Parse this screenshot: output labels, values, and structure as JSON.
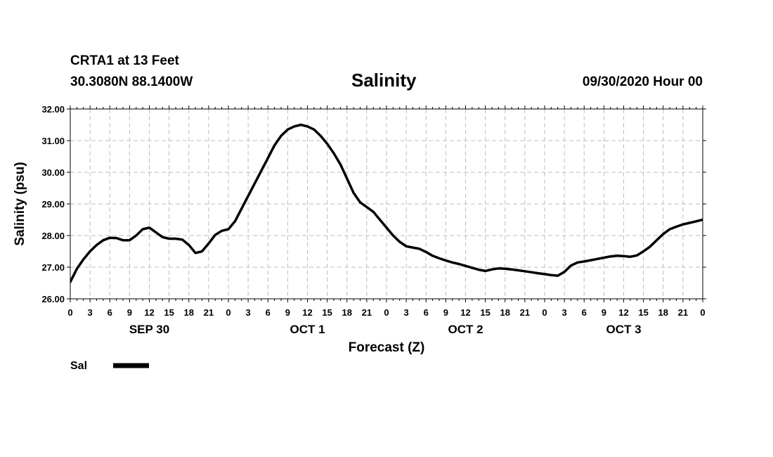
{
  "header": {
    "station": "CRTA1 at 13 Feet",
    "coords": "30.3080N 88.1400W",
    "run_time": "09/30/2020 Hour 00"
  },
  "chart_data": {
    "type": "line",
    "title": "Salinity",
    "xlabel": "Forecast (Z)",
    "ylabel": "Salinity (psu)",
    "ylim": [
      26,
      32
    ],
    "xlim": [
      0,
      96
    ],
    "grid": true,
    "x_unit": "forecast hour",
    "y_ticks": [
      "26.00",
      "27.00",
      "28.00",
      "29.00",
      "30.00",
      "31.00",
      "32.00"
    ],
    "x_tick_labels": [
      "0",
      "3",
      "6",
      "9",
      "12",
      "15",
      "18",
      "21",
      "0",
      "3",
      "6",
      "9",
      "12",
      "15",
      "18",
      "21",
      "0",
      "3",
      "6",
      "9",
      "12",
      "15",
      "18",
      "21",
      "0",
      "3",
      "6",
      "9",
      "12",
      "15",
      "18",
      "21",
      "0"
    ],
    "day_labels": [
      {
        "label": "SEP 30",
        "hour": 12
      },
      {
        "label": "OCT 1",
        "hour": 36
      },
      {
        "label": "OCT 2",
        "hour": 60
      },
      {
        "label": "OCT 3",
        "hour": 84
      }
    ],
    "series": [
      {
        "name": "Sal",
        "color": "#000000",
        "x": [
          0,
          1,
          2,
          3,
          4,
          5,
          6,
          7,
          8,
          9,
          10,
          11,
          12,
          13,
          14,
          15,
          16,
          17,
          18,
          19,
          20,
          21,
          22,
          23,
          24,
          25,
          26,
          27,
          28,
          29,
          30,
          31,
          32,
          33,
          34,
          35,
          36,
          37,
          38,
          39,
          40,
          41,
          42,
          43,
          44,
          45,
          46,
          47,
          48,
          49,
          50,
          51,
          52,
          53,
          54,
          55,
          56,
          57,
          58,
          59,
          60,
          61,
          62,
          63,
          64,
          65,
          66,
          67,
          68,
          69,
          70,
          71,
          72,
          73,
          74,
          75,
          76,
          77,
          78,
          79,
          80,
          81,
          82,
          83,
          84,
          85,
          86,
          87,
          88,
          89,
          90,
          91,
          92,
          93,
          94,
          95,
          96
        ],
        "y": [
          26.53,
          26.95,
          27.25,
          27.5,
          27.7,
          27.85,
          27.93,
          27.92,
          27.85,
          27.85,
          28.0,
          28.2,
          28.25,
          28.1,
          27.95,
          27.9,
          27.9,
          27.87,
          27.7,
          27.45,
          27.5,
          27.75,
          28.02,
          28.15,
          28.2,
          28.45,
          28.85,
          29.25,
          29.65,
          30.05,
          30.45,
          30.85,
          31.15,
          31.35,
          31.45,
          31.5,
          31.45,
          31.35,
          31.15,
          30.9,
          30.6,
          30.25,
          29.8,
          29.35,
          29.05,
          28.9,
          28.75,
          28.5,
          28.25,
          28.0,
          27.8,
          27.66,
          27.62,
          27.58,
          27.48,
          27.36,
          27.28,
          27.21,
          27.15,
          27.1,
          27.04,
          26.98,
          26.92,
          26.88,
          26.93,
          26.96,
          26.95,
          26.93,
          26.9,
          26.87,
          26.84,
          26.81,
          26.78,
          26.75,
          26.73,
          26.85,
          27.05,
          27.15,
          27.18,
          27.22,
          27.26,
          27.3,
          27.34,
          27.36,
          27.35,
          27.33,
          27.37,
          27.5,
          27.65,
          27.85,
          28.05,
          28.2,
          28.28,
          28.35,
          28.4,
          28.45,
          28.5
        ]
      }
    ],
    "legend": {
      "position": "bottom-left",
      "label": "Sal"
    }
  }
}
